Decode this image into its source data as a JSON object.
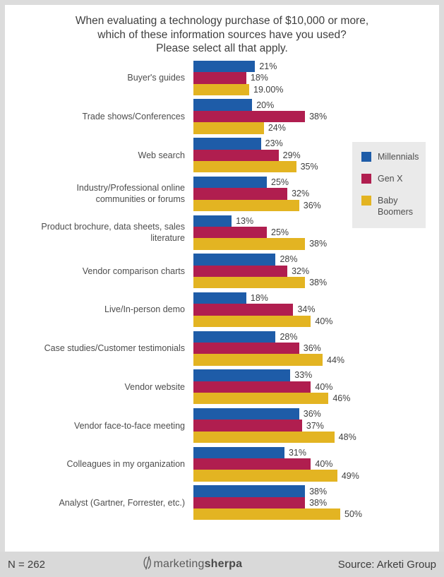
{
  "title": {
    "lines": [
      "When evaluating a technology purchase of $10,000 or more,",
      "which of these information sources have you used?",
      "Please select all that apply."
    ]
  },
  "chart_data": {
    "type": "bar",
    "orientation": "horizontal",
    "title": "When evaluating a technology purchase of $10,000 or more, which of these information sources have you used? Please select all that apply.",
    "xlabel": "",
    "ylabel": "",
    "value_unit": "%",
    "value_axis_max": 50,
    "grid": false,
    "legend_position": "right",
    "categories": [
      "Buyer's guides",
      "Trade shows/Conferences",
      "Web search",
      "Industry/Professional online communities or forums",
      "Product brochure, data sheets, sales literature",
      "Vendor comparison charts",
      "Live/In-person demo",
      "Case studies/Customer testimonials",
      "Vendor website",
      "Vendor face-to-face meeting",
      "Colleagues in my organization",
      "Analyst (Gartner, Forrester, etc.)"
    ],
    "series": [
      {
        "name": "Millennials",
        "color": "#1e5ca8",
        "values": [
          21,
          20,
          23,
          25,
          13,
          28,
          18,
          28,
          33,
          36,
          31,
          38
        ],
        "labels": [
          "21%",
          "20%",
          "23%",
          "25%",
          "13%",
          "28%",
          "18%",
          "28%",
          "33%",
          "36%",
          "31%",
          "38%"
        ]
      },
      {
        "name": "Gen X",
        "color": "#b01e4f",
        "values": [
          18,
          38,
          29,
          32,
          25,
          32,
          34,
          36,
          40,
          37,
          40,
          38
        ],
        "labels": [
          "18%",
          "38%",
          "29%",
          "32%",
          "25%",
          "32%",
          "34%",
          "36%",
          "40%",
          "37%",
          "40%",
          "38%"
        ]
      },
      {
        "name": "Baby Boomers",
        "color": "#e3b422",
        "values": [
          19,
          24,
          35,
          36,
          38,
          38,
          40,
          44,
          46,
          48,
          49,
          50
        ],
        "labels": [
          "19.00%",
          "24%",
          "35%",
          "36%",
          "38%",
          "38%",
          "40%",
          "44%",
          "46%",
          "48%",
          "49%",
          "50%"
        ]
      }
    ]
  },
  "legend": {
    "items": [
      {
        "label": "Millennials",
        "color": "#1e5ca8"
      },
      {
        "label": "Gen X",
        "color": "#b01e4f"
      },
      {
        "label": "Baby Boomers",
        "color": "#e3b422"
      }
    ]
  },
  "footer": {
    "n_label": "N = 262",
    "source_label": "Source:  Arketi Group",
    "logo": {
      "prefix": "marketing",
      "suffix": "sherpa"
    }
  }
}
